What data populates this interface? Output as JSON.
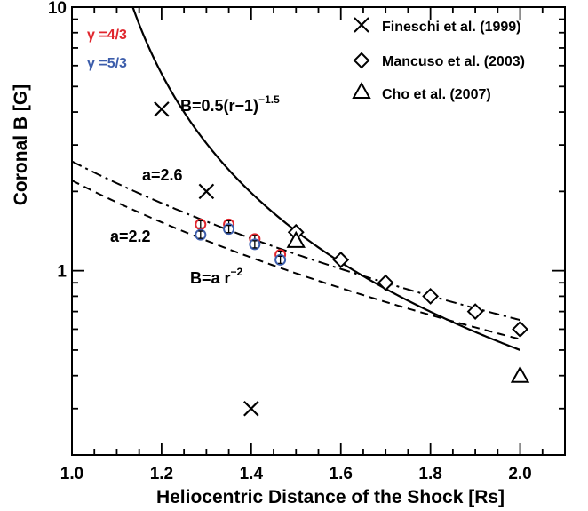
{
  "chart_data": {
    "type": "scatter",
    "xlabel": "Heliocentric Distance of the Shock [Rs]",
    "ylabel": "Coronal B [G]",
    "xlim": [
      1.0,
      2.1
    ],
    "ylim": [
      0.2,
      10
    ],
    "yscale": "log",
    "x_ticks": [
      "1.0",
      "1.2",
      "1.4",
      "1.6",
      "1.8",
      "2.0"
    ],
    "y_ticks": [
      "1",
      "10"
    ],
    "grid": false,
    "legend": "top-right",
    "series": [
      {
        "name": "Fineschi et al. (1999)",
        "marker": "x",
        "points": [
          [
            1.2,
            4.1
          ],
          [
            1.3,
            2.0
          ],
          [
            1.4,
            0.3
          ]
        ]
      },
      {
        "name": "Mancuso et al. (2003)",
        "marker": "diamond",
        "points": [
          [
            1.5,
            1.4
          ],
          [
            1.6,
            1.1
          ],
          [
            1.7,
            0.9
          ],
          [
            1.8,
            0.8
          ],
          [
            1.9,
            0.7
          ],
          [
            2.0,
            0.6
          ]
        ]
      },
      {
        "name": "Cho et al. (2007)",
        "marker": "triangle",
        "points": [
          [
            1.5,
            1.3
          ],
          [
            2.0,
            0.4
          ]
        ]
      },
      {
        "name": "γ =4/3",
        "marker": "circle",
        "color": "#e0262d",
        "points": [
          [
            1.287,
            1.5
          ],
          [
            1.35,
            1.5
          ],
          [
            1.408,
            1.32
          ],
          [
            1.465,
            1.15
          ]
        ]
      },
      {
        "name": "γ =5/3",
        "marker": "circle",
        "color": "#3c5dab",
        "points": [
          [
            1.287,
            1.37
          ],
          [
            1.35,
            1.44
          ],
          [
            1.408,
            1.26
          ],
          [
            1.465,
            1.1
          ]
        ]
      }
    ],
    "curves": [
      {
        "label": "B=0.5(r−1)",
        "label_sup": "−1.5",
        "style": "solid",
        "model": "0.5*(r-1)^-1.5"
      },
      {
        "label": "a=2.6",
        "style": "dashdot",
        "model": "2.6*r^-2"
      },
      {
        "label": "a=2.2",
        "style": "dashed",
        "model": "2.2*r^-2"
      }
    ],
    "annotations": {
      "model_label": "B=a r",
      "model_label_sup": "−2"
    },
    "colors": {
      "gamma_43": "#e0262d",
      "gamma_53": "#3c5dab"
    }
  }
}
